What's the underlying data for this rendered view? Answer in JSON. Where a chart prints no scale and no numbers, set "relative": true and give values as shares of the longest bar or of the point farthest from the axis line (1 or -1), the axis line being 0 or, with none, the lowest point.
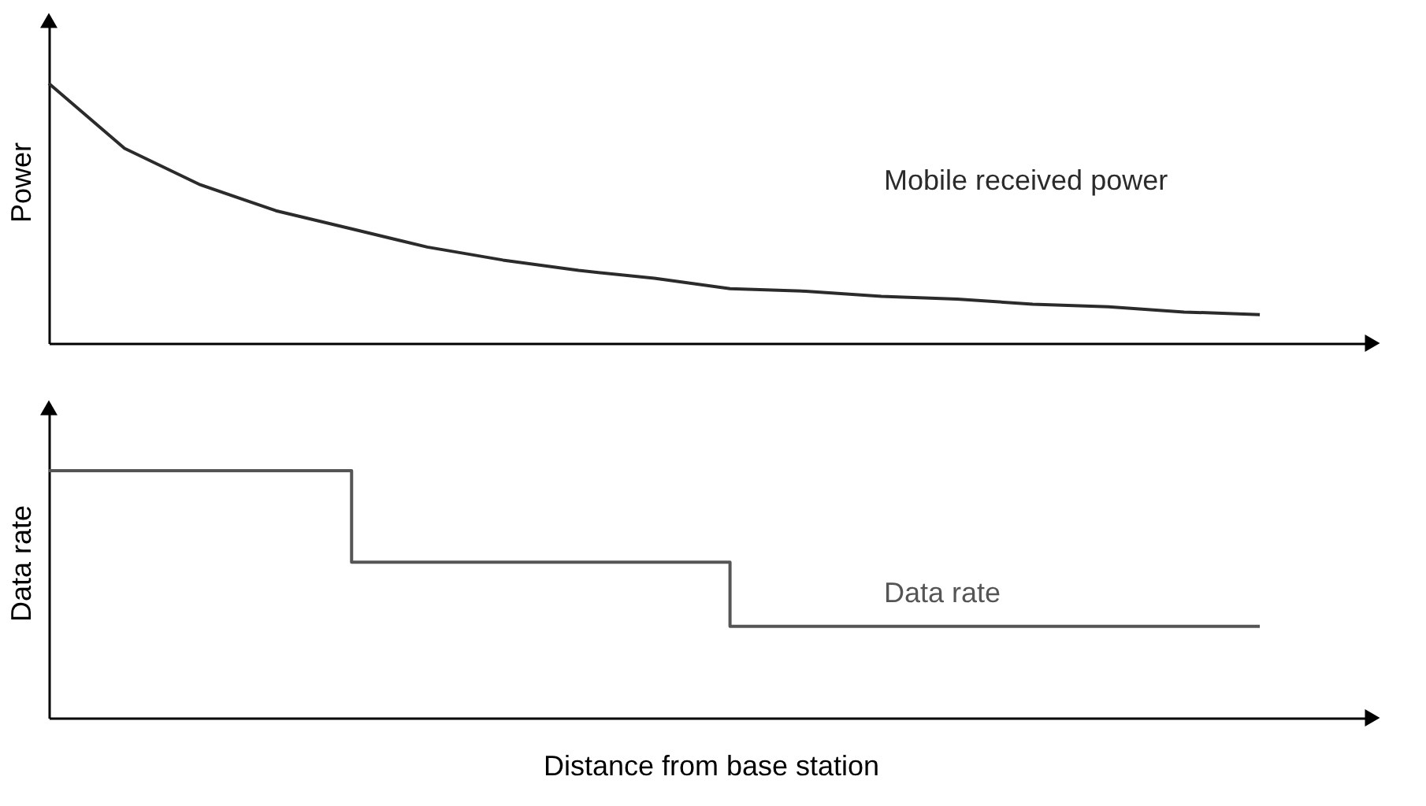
{
  "chart_data": [
    {
      "type": "line",
      "relative": true,
      "ylabel": "Power",
      "tick_labels": false,
      "grid": false,
      "categories": [
        null,
        null,
        null,
        null,
        null,
        null,
        null,
        null,
        null,
        null,
        null,
        null,
        null,
        null,
        null,
        null,
        null
      ],
      "series": [
        {
          "name": "Mobile received power",
          "color": "#2b2b2b",
          "values": [
            1.0,
            0.75,
            0.61,
            0.51,
            0.44,
            0.37,
            0.32,
            0.28,
            0.25,
            0.21,
            0.2,
            0.18,
            0.17,
            0.15,
            0.14,
            0.12,
            0.11
          ]
        }
      ]
    },
    {
      "type": "step",
      "relative": true,
      "ylabel": "Data rate",
      "xlabel": "Distance from base station",
      "tick_labels": false,
      "grid": false,
      "categories": [
        null,
        null,
        null,
        null,
        null,
        null,
        null,
        null,
        null,
        null,
        null,
        null,
        null,
        null,
        null,
        null,
        null
      ],
      "series": [
        {
          "name": "Data rate",
          "color": "#555555",
          "values": [
            1.0,
            1.0,
            1.0,
            1.0,
            0.63,
            0.63,
            0.63,
            0.63,
            0.63,
            0.37,
            0.37,
            0.37,
            0.37,
            0.37,
            0.37,
            0.37,
            0.37
          ]
        }
      ]
    }
  ]
}
